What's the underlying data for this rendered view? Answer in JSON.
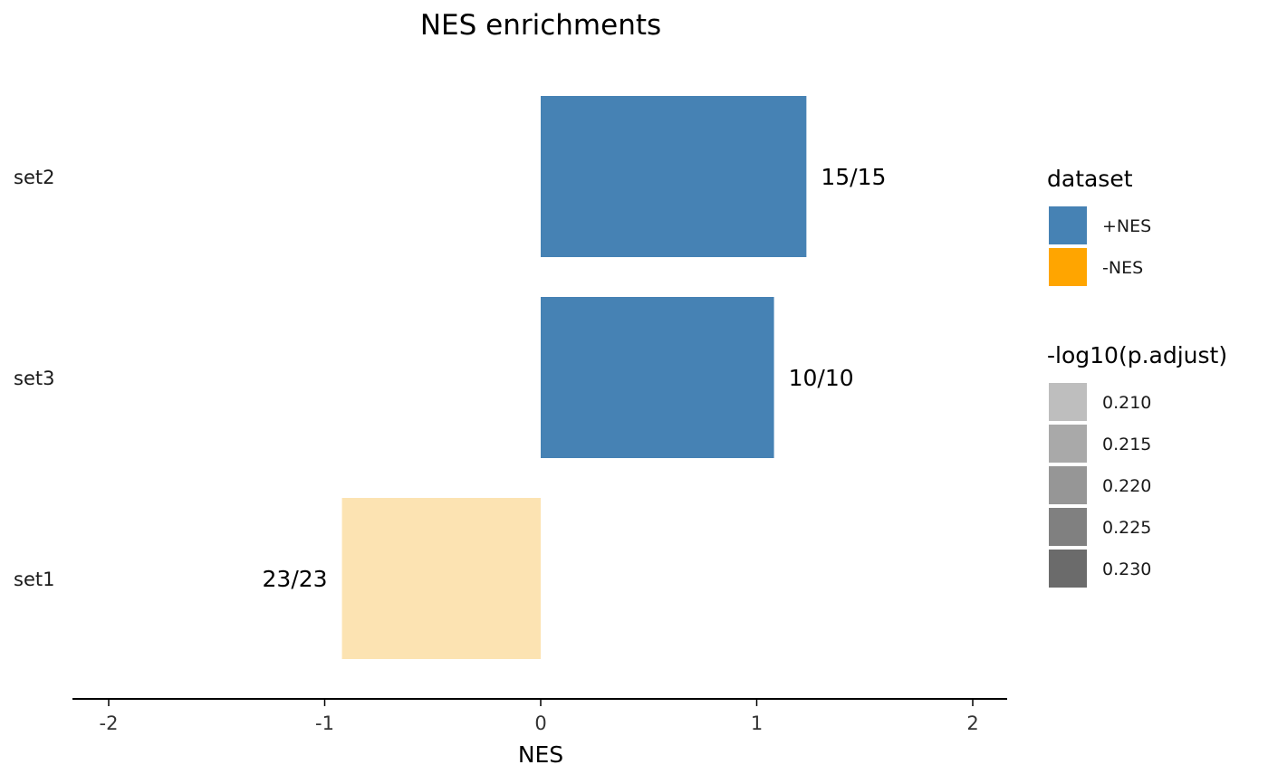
{
  "chart_data": {
    "type": "bar",
    "orientation": "horizontal",
    "title": "NES enrichments",
    "xlabel": "NES",
    "ylabel": "",
    "xlim": [
      -2.2,
      2.2
    ],
    "x_ticks": [
      -2,
      -1,
      0,
      1,
      2
    ],
    "x_tick_labels": [
      "-2",
      "-1",
      "0",
      "1",
      "2"
    ],
    "grid": false,
    "legend_position": "right",
    "categories": [
      "set2",
      "set3",
      "set1"
    ],
    "values": [
      1.23,
      1.08,
      -0.92
    ],
    "bar_labels": [
      "15/15",
      "10/10",
      "23/23"
    ],
    "dataset": [
      "+NES",
      "+NES",
      "-NES"
    ],
    "neg_log10_p_adjust": [
      0.21,
      0.21,
      0.21
    ],
    "legends": [
      {
        "title": "dataset",
        "kind": "fill",
        "entries": [
          {
            "label": "+NES",
            "color": "#4682B4"
          },
          {
            "label": "-NES",
            "color": "#FFA500"
          }
        ]
      },
      {
        "title": "-log10(p.adjust)",
        "kind": "alpha",
        "entries": [
          {
            "label": "0.210",
            "color": "#BEBEBE"
          },
          {
            "label": "0.215",
            "color": "#A9A9A9"
          },
          {
            "label": "0.220",
            "color": "#969696"
          },
          {
            "label": "0.225",
            "color": "#808080"
          },
          {
            "label": "0.230",
            "color": "#6B6B6B"
          }
        ]
      }
    ],
    "colors": {
      "pos_bar": "#4682B4",
      "neg_bar": "#FCE3B2",
      "axis": "#000000"
    }
  }
}
